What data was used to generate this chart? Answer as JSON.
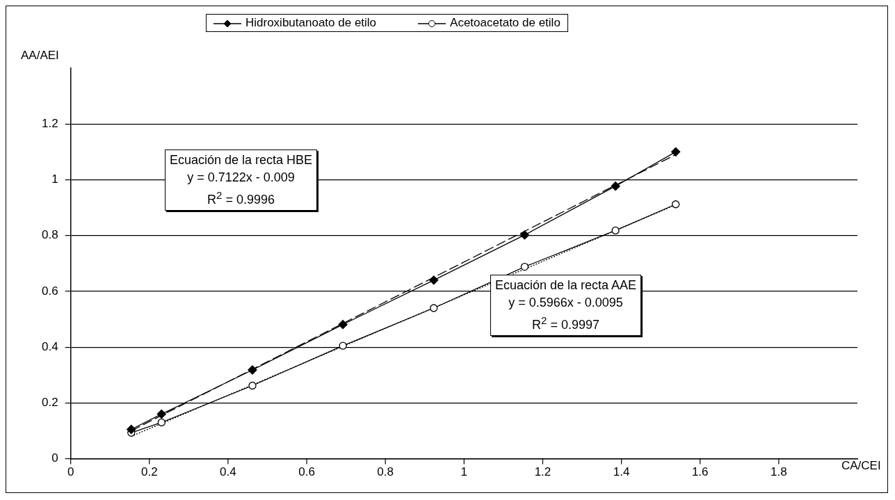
{
  "chart_data": {
    "type": "line",
    "xlabel": "CA/CEI",
    "ylabel": "AA/AEI",
    "xlim": [
      0,
      2
    ],
    "xticks": [
      0,
      0.2,
      0.4,
      0.6,
      0.8,
      1,
      1.2,
      1.4,
      1.6,
      1.8
    ],
    "ylim": [
      0,
      1.4
    ],
    "yticks": [
      0,
      0.2,
      0.4,
      0.6,
      0.8,
      1,
      1.2
    ],
    "grid": "y",
    "legend": "top",
    "series": [
      {
        "name": "Hidroxibutanoato de etilo",
        "color": "#000000",
        "marker": "diamond",
        "x": [
          0.154,
          0.231,
          0.462,
          0.692,
          0.923,
          1.154,
          1.385,
          1.538
        ],
        "values": [
          0.105,
          0.16,
          0.318,
          0.481,
          0.64,
          0.802,
          0.977,
          1.1
        ]
      },
      {
        "name": "Acetoacetato de etilo",
        "color": "#000000",
        "marker": "circle",
        "x": [
          0.154,
          0.231,
          0.462,
          0.692,
          0.923,
          1.154,
          1.385,
          1.538
        ],
        "values": [
          0.093,
          0.13,
          0.262,
          0.405,
          0.54,
          0.688,
          0.818,
          0.912
        ]
      },
      {
        "type": "line",
        "color": "#000000",
        "marker": "none",
        "line_style": "dashed",
        "x": [
          0.154,
          1.538
        ],
        "values": [
          0.1,
          1.09
        ]
      },
      {
        "type": "line",
        "color": "#000000",
        "marker": "none",
        "line_style": "dotted",
        "x": [
          0.154,
          1.538
        ],
        "values": [
          0.08,
          0.91
        ]
      }
    ],
    "annotations": [
      "Ecuación de la recta HBE\ny = 0.7122x - 0.009\nR$^{2}$ = 0.9996",
      "Ecuación de la recta AAE\ny = 0.5966x - 0.0095\nR$^{2}$ = 0.9997"
    ]
  }
}
